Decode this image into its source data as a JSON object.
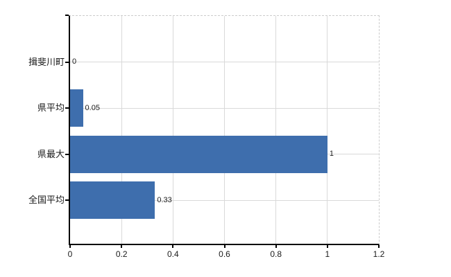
{
  "chart_data": {
    "type": "bar",
    "orientation": "horizontal",
    "title": "",
    "xlabel": "",
    "ylabel": "",
    "categories": [
      "揖斐川町",
      "県平均",
      "県最大",
      "全国平均"
    ],
    "values": [
      0,
      0.05,
      1,
      0.33
    ],
    "value_labels": [
      "0",
      "0.05",
      "1",
      "0.33"
    ],
    "xlim": [
      0,
      1.2
    ],
    "x_ticks": [
      0,
      0.2,
      0.4,
      0.6,
      0.8,
      1,
      1.2
    ],
    "x_tick_labels": [
      "0",
      "0.2",
      "0.4",
      "0.6",
      "0.8",
      "1",
      "1.2"
    ],
    "grid": true,
    "legend": false,
    "colors": {
      "bar": "#3e6ead",
      "grid": "#d9d9d9",
      "axis": "#000000",
      "text": "#1a1a1a"
    }
  }
}
